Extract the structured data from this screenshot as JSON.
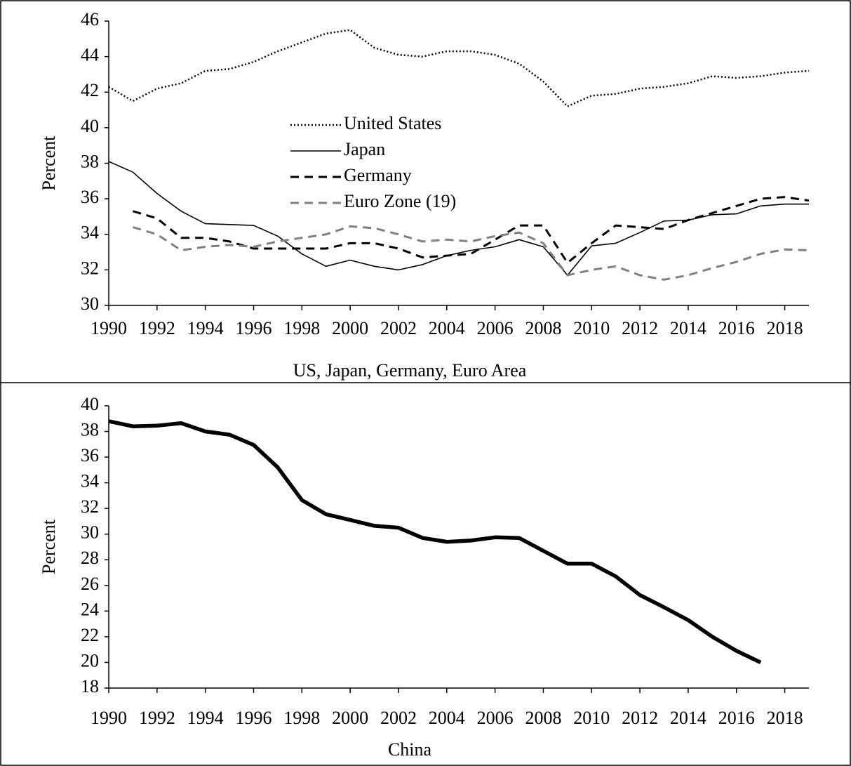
{
  "chart_data": [
    {
      "type": "line",
      "caption": "US, Japan, Germany, Euro Area",
      "ylabel": "Percent",
      "x": [
        1990,
        1991,
        1992,
        1993,
        1994,
        1995,
        1996,
        1997,
        1998,
        1999,
        2000,
        2001,
        2002,
        2003,
        2004,
        2005,
        2006,
        2007,
        2008,
        2009,
        2010,
        2011,
        2012,
        2013,
        2014,
        2015,
        2016,
        2017,
        2018,
        2019
      ],
      "xlim": [
        1990,
        2019
      ],
      "xticks": [
        1990,
        1992,
        1994,
        1996,
        1998,
        2000,
        2002,
        2004,
        2006,
        2008,
        2010,
        2012,
        2014,
        2016,
        2018
      ],
      "ylim": [
        30,
        46
      ],
      "yticks": [
        30,
        32,
        34,
        36,
        38,
        40,
        42,
        44,
        46
      ],
      "legend": "center",
      "series": [
        {
          "name": "United States",
          "color": "#000000",
          "style": "dotted",
          "values": [
            42.3,
            41.5,
            42.2,
            42.5,
            43.2,
            43.3,
            43.7,
            44.3,
            44.8,
            45.3,
            45.5,
            44.5,
            44.1,
            44.0,
            44.3,
            44.3,
            44.1,
            43.6,
            42.6,
            41.2,
            41.8,
            41.9,
            42.2,
            42.3,
            42.5,
            42.9,
            42.8,
            42.9,
            43.1,
            43.2
          ]
        },
        {
          "name": "Japan",
          "color": "#000000",
          "style": "solid",
          "values": [
            38.1,
            37.5,
            36.3,
            35.3,
            34.6,
            34.55,
            34.5,
            33.9,
            32.9,
            32.2,
            32.55,
            32.2,
            32.0,
            32.3,
            32.8,
            33.1,
            33.3,
            33.7,
            33.3,
            31.7,
            33.35,
            33.5,
            34.1,
            34.75,
            34.8,
            35.1,
            35.15,
            35.6,
            35.7,
            35.7
          ]
        },
        {
          "name": "Germany",
          "color": "#000000",
          "style": "dashed",
          "values": [
            null,
            35.3,
            34.9,
            33.8,
            33.8,
            33.6,
            33.2,
            33.2,
            33.2,
            33.2,
            33.5,
            33.5,
            33.2,
            32.7,
            32.8,
            32.9,
            33.7,
            34.5,
            34.5,
            32.4,
            33.5,
            34.5,
            34.4,
            34.3,
            34.8,
            35.2,
            35.6,
            36.0,
            36.1,
            35.9
          ]
        },
        {
          "name": "Euro Zone (19)",
          "color": "#808080",
          "style": "dashed",
          "values": [
            null,
            34.4,
            34.0,
            33.1,
            33.3,
            33.4,
            33.3,
            33.6,
            33.8,
            34.0,
            34.45,
            34.35,
            34.0,
            33.6,
            33.7,
            33.6,
            33.9,
            34.1,
            33.5,
            31.7,
            32.0,
            32.2,
            31.7,
            31.45,
            31.7,
            32.1,
            32.45,
            32.9,
            33.15,
            33.1
          ]
        }
      ]
    },
    {
      "type": "line",
      "caption": "China",
      "ylabel": "Percent",
      "x": [
        1990,
        1991,
        1992,
        1993,
        1994,
        1995,
        1996,
        1997,
        1998,
        1999,
        2000,
        2001,
        2002,
        2003,
        2004,
        2005,
        2006,
        2007,
        2008,
        2009,
        2010,
        2011,
        2012,
        2013,
        2014,
        2015,
        2016,
        2017
      ],
      "xlim": [
        1990,
        2019
      ],
      "xticks": [
        1990,
        1992,
        1994,
        1996,
        1998,
        2000,
        2002,
        2004,
        2006,
        2008,
        2010,
        2012,
        2014,
        2016,
        2018
      ],
      "ylim": [
        18,
        40
      ],
      "yticks": [
        18,
        20,
        22,
        24,
        26,
        28,
        30,
        32,
        34,
        36,
        38,
        40
      ],
      "series": [
        {
          "color": "#000000",
          "style": "solid",
          "values": [
            38.8,
            38.4,
            38.45,
            38.65,
            38.0,
            37.75,
            36.95,
            35.2,
            32.65,
            31.55,
            31.1,
            30.65,
            30.5,
            29.7,
            29.4,
            29.5,
            29.75,
            29.7,
            28.7,
            27.7,
            27.7,
            26.7,
            25.25,
            24.3,
            23.3,
            22.0,
            20.9,
            20.0
          ]
        }
      ]
    }
  ]
}
